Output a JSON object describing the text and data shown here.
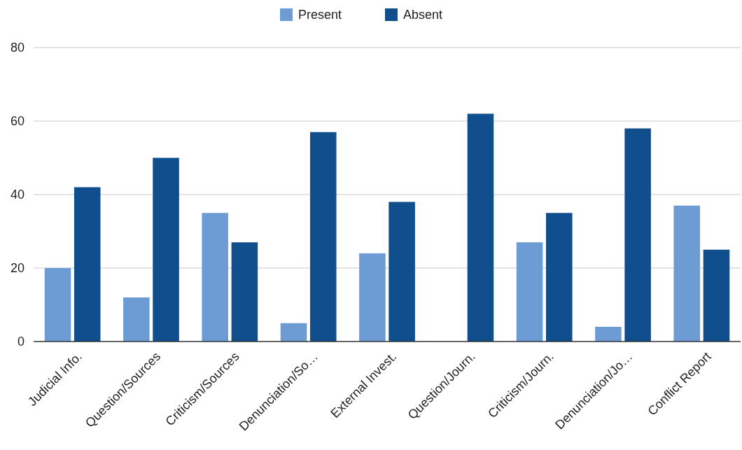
{
  "chart_data": {
    "type": "bar",
    "categories": [
      "Judicial Info.",
      "Question/Sources",
      "Criticism/Sources",
      "Denunciation/So…",
      "External Invest.",
      "Question/Journ.",
      "Criticism/Journ.",
      "Denunciation/Jo…",
      "Conflict Report"
    ],
    "series": [
      {
        "name": "Present",
        "color": "#6d9bd3",
        "values": [
          20,
          12,
          35,
          5,
          24,
          0,
          27,
          4,
          37
        ]
      },
      {
        "name": "Absent",
        "color": "#114e8d",
        "values": [
          42,
          50,
          27,
          57,
          38,
          62,
          35,
          58,
          25
        ]
      }
    ],
    "ylim": [
      0,
      80
    ],
    "yticks": [
      0,
      20,
      40,
      60,
      80
    ],
    "grid": "y",
    "legend": "top"
  }
}
